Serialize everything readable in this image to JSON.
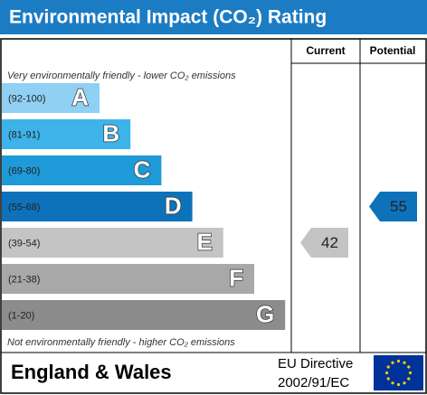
{
  "header": {
    "title": "Environmental Impact (CO₂) Rating"
  },
  "columns": [
    "Current",
    "Potential"
  ],
  "top_note": "Very environmentally friendly - lower CO₂ emissions",
  "bottom_note": "Not environmentally friendly - higher CO₂ emissions",
  "bands": [
    {
      "range": "(92-100)",
      "letter": "A",
      "color": "#8fd0f3"
    },
    {
      "range": "(81-91)",
      "letter": "B",
      "color": "#3db3ea"
    },
    {
      "range": "(69-80)",
      "letter": "C",
      "color": "#1e9ad8"
    },
    {
      "range": "(55-68)",
      "letter": "D",
      "color": "#0e72bb"
    },
    {
      "range": "(39-54)",
      "letter": "E",
      "color": "#c4c4c4"
    },
    {
      "range": "(21-38)",
      "letter": "F",
      "color": "#a8a8a8"
    },
    {
      "range": "(1-20)",
      "letter": "G",
      "color": "#8c8c8c"
    }
  ],
  "current": 42,
  "potential": 55,
  "footer": {
    "region": "England & Wales",
    "directive": [
      "EU Directive",
      "2002/91/EC"
    ]
  }
}
